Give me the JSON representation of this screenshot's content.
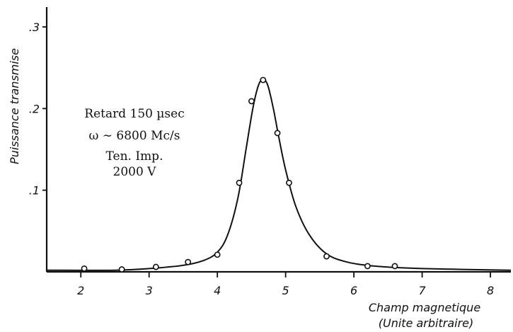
{
  "chart_data": {
    "type": "scatter",
    "title": "",
    "xlabel_line1": "Champ magnetique",
    "xlabel_line2": "(Unite arbitraire)",
    "ylabel": "Puissance transmise",
    "xlim": [
      1.5,
      8.3
    ],
    "ylim": [
      0,
      0.3
    ],
    "x_ticks": [
      2,
      3,
      4,
      5,
      6,
      7,
      8
    ],
    "x_tick_labels": [
      "2",
      "3",
      "4",
      "5",
      "6",
      "7",
      "8"
    ],
    "y_ticks": [
      0.1,
      0.2,
      0.3
    ],
    "y_tick_labels": [
      ".1",
      ".2",
      ".3"
    ],
    "grid": false,
    "annotations": [
      "Retard 150 µsec",
      "ω ∼ 6800 Mc/s",
      "Ten. Imp.",
      "2000 V"
    ],
    "points": [
      {
        "x": 2.05,
        "y": 0.004
      },
      {
        "x": 2.6,
        "y": 0.003
      },
      {
        "x": 3.1,
        "y": 0.006
      },
      {
        "x": 3.57,
        "y": 0.012
      },
      {
        "x": 4.0,
        "y": 0.021
      },
      {
        "x": 4.32,
        "y": 0.109
      },
      {
        "x": 4.5,
        "y": 0.209
      },
      {
        "x": 4.67,
        "y": 0.235
      },
      {
        "x": 4.88,
        "y": 0.17
      },
      {
        "x": 5.05,
        "y": 0.109
      },
      {
        "x": 5.6,
        "y": 0.019
      },
      {
        "x": 6.2,
        "y": 0.007
      },
      {
        "x": 6.6,
        "y": 0.007
      }
    ],
    "curve": [
      [
        1.5,
        0.002
      ],
      [
        2.5,
        0.002
      ],
      [
        3.0,
        0.004
      ],
      [
        3.5,
        0.008
      ],
      [
        3.8,
        0.014
      ],
      [
        4.0,
        0.024
      ],
      [
        4.15,
        0.045
      ],
      [
        4.3,
        0.09
      ],
      [
        4.42,
        0.15
      ],
      [
        4.52,
        0.2
      ],
      [
        4.6,
        0.228
      ],
      [
        4.67,
        0.236
      ],
      [
        4.74,
        0.228
      ],
      [
        4.82,
        0.2
      ],
      [
        4.9,
        0.165
      ],
      [
        5.0,
        0.125
      ],
      [
        5.15,
        0.08
      ],
      [
        5.35,
        0.045
      ],
      [
        5.6,
        0.022
      ],
      [
        5.9,
        0.012
      ],
      [
        6.3,
        0.007
      ],
      [
        7.0,
        0.004
      ],
      [
        8.3,
        0.002
      ]
    ]
  }
}
